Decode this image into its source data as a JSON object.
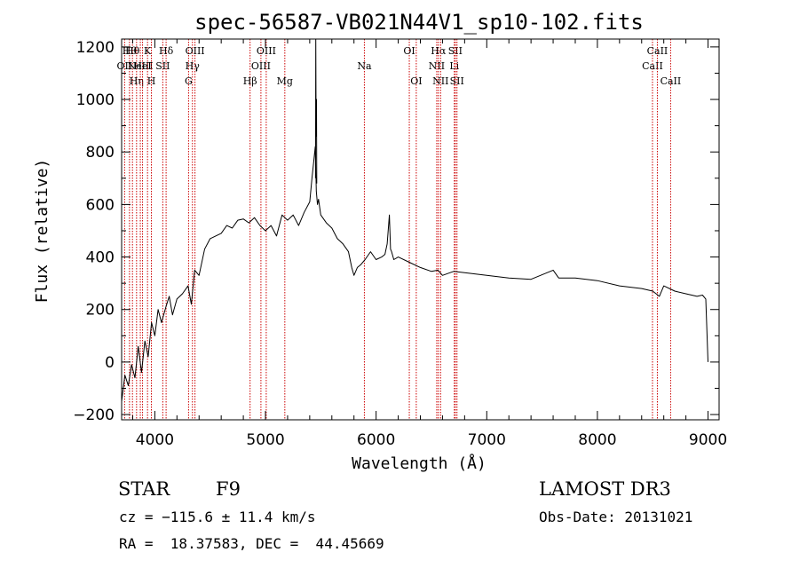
{
  "chart_data": {
    "type": "line",
    "title": "spec-56587-VB021N44V1_sp10-102.fits",
    "xlabel": "Wavelength (Å)",
    "ylabel": "Flux (relative)",
    "xlim": [
      3700,
      9100
    ],
    "ylim": [
      -220,
      1230
    ],
    "xticks": [
      4000,
      5000,
      6000,
      7000,
      8000,
      9000
    ],
    "yticks": [
      -200,
      0,
      200,
      400,
      600,
      800,
      1000,
      1200
    ],
    "xtick_labels": [
      "4000",
      "5000",
      "6000",
      "7000",
      "8000",
      "9000"
    ],
    "ytick_labels": [
      "−200",
      "0",
      "200",
      "400",
      "600",
      "800",
      "1000",
      "1200"
    ],
    "series": [
      {
        "name": "spectrum",
        "x": [
          3700,
          3730,
          3760,
          3790,
          3820,
          3850,
          3880,
          3910,
          3940,
          3970,
          4000,
          4030,
          4060,
          4100,
          4130,
          4160,
          4200,
          4250,
          4300,
          4330,
          4360,
          4400,
          4450,
          4500,
          4550,
          4600,
          4650,
          4700,
          4750,
          4800,
          4850,
          4900,
          4950,
          5000,
          5050,
          5100,
          5150,
          5200,
          5250,
          5300,
          5350,
          5400,
          5420,
          5440,
          5450,
          5460,
          5470,
          5480,
          5500,
          5550,
          5600,
          5650,
          5700,
          5750,
          5780,
          5800,
          5830,
          5860,
          5900,
          5950,
          6000,
          6050,
          6080,
          6100,
          6120,
          6130,
          6140,
          6160,
          6200,
          6300,
          6400,
          6500,
          6560,
          6600,
          6700,
          6800,
          7000,
          7200,
          7400,
          7600,
          7650,
          7800,
          8000,
          8200,
          8400,
          8500,
          8560,
          8600,
          8700,
          8800,
          8900,
          8950,
          8980,
          9000
        ],
        "y": [
          -150,
          -50,
          -90,
          -10,
          -60,
          60,
          -40,
          80,
          20,
          150,
          100,
          200,
          150,
          210,
          250,
          180,
          240,
          260,
          290,
          220,
          350,
          330,
          430,
          470,
          480,
          490,
          520,
          510,
          540,
          545,
          530,
          550,
          520,
          500,
          520,
          480,
          560,
          540,
          560,
          520,
          570,
          610,
          700,
          780,
          820,
          650,
          600,
          620,
          560,
          530,
          510,
          470,
          450,
          420,
          360,
          330,
          360,
          370,
          390,
          420,
          390,
          400,
          410,
          450,
          560,
          430,
          420,
          390,
          400,
          380,
          360,
          345,
          350,
          330,
          345,
          340,
          330,
          320,
          315,
          350,
          320,
          320,
          310,
          290,
          280,
          270,
          250,
          290,
          270,
          260,
          250,
          255,
          240,
          0
        ]
      },
      {
        "name": "emission spike",
        "x": [
          5452,
          5455,
          5458,
          5461,
          5464
        ],
        "y": [
          700,
          1230,
          860,
          1000,
          680
        ]
      }
    ],
    "spectral_lines": [
      {
        "wl": 3727,
        "label": "OII",
        "row": 2
      },
      {
        "wl": 3771,
        "label": "Hθ",
        "row": 1
      },
      {
        "wl": 3798,
        "label": "Hθ",
        "row": 1
      },
      {
        "wl": 3835,
        "label": "Hη",
        "row": 3
      },
      {
        "wl": 3869,
        "label": "NeIII",
        "row": 2
      },
      {
        "wl": 3889,
        "label": "HeI",
        "row": 2
      },
      {
        "wl": 3934,
        "label": "K",
        "row": 1
      },
      {
        "wl": 3969,
        "label": "H",
        "row": 3
      },
      {
        "wl": 4072,
        "label": "SII",
        "row": 2
      },
      {
        "wl": 4102,
        "label": "Hδ",
        "row": 1
      },
      {
        "wl": 4305,
        "label": "G",
        "row": 3
      },
      {
        "wl": 4340,
        "label": "Hγ",
        "row": 2
      },
      {
        "wl": 4363,
        "label": "OIII",
        "row": 1
      },
      {
        "wl": 4861,
        "label": "Hβ",
        "row": 3
      },
      {
        "wl": 4959,
        "label": "OIII",
        "row": 2
      },
      {
        "wl": 5007,
        "label": "OIII",
        "row": 1
      },
      {
        "wl": 5175,
        "label": "Mg",
        "row": 3
      },
      {
        "wl": 5894,
        "label": "Na",
        "row": 2
      },
      {
        "wl": 6300,
        "label": "OI",
        "row": 1
      },
      {
        "wl": 6363,
        "label": "OI",
        "row": 3
      },
      {
        "wl": 6548,
        "label": "NII",
        "row": 2
      },
      {
        "wl": 6563,
        "label": "Hα",
        "row": 1
      },
      {
        "wl": 6583,
        "label": "NII",
        "row": 3
      },
      {
        "wl": 6707,
        "label": "Li",
        "row": 2
      },
      {
        "wl": 6716,
        "label": "SII",
        "row": 1
      },
      {
        "wl": 6731,
        "label": "SII",
        "row": 3
      },
      {
        "wl": 8498,
        "label": "CaII",
        "row": 2
      },
      {
        "wl": 8542,
        "label": "CaII",
        "row": 1
      },
      {
        "wl": 8662,
        "label": "CaII",
        "row": 3
      }
    ]
  },
  "info": {
    "class": "STAR",
    "subclass": "F9",
    "release": "LAMOST DR3",
    "cz": "cz = −115.6 ± 11.4 km/s",
    "obs_date": "Obs-Date: 20131021",
    "coords": "RA =  18.37583, DEC =  44.45669"
  },
  "colors": {
    "spectrum": "#000000",
    "lines": "#cc0000"
  }
}
